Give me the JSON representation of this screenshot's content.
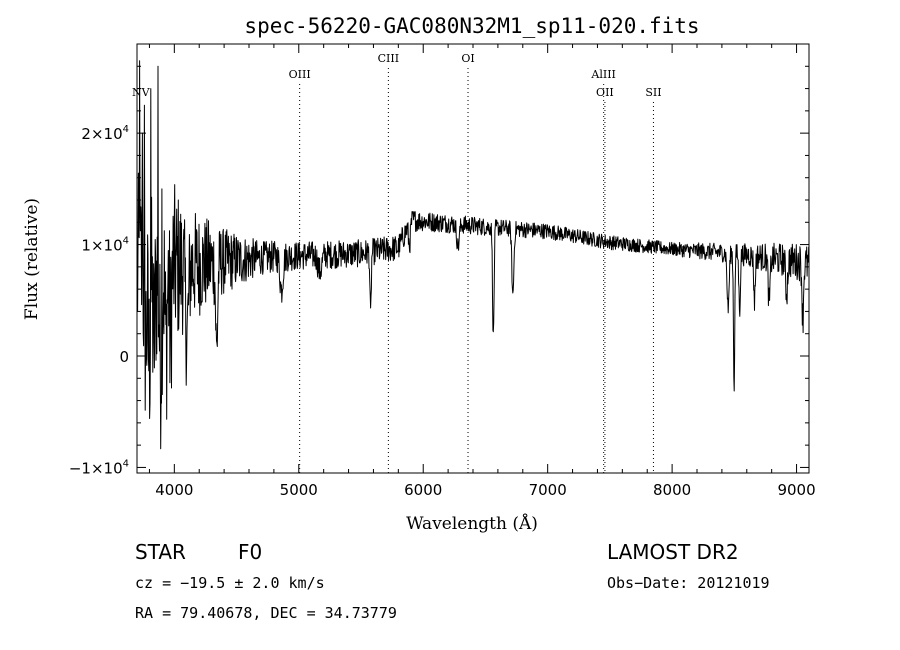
{
  "chart_data": {
    "type": "line",
    "title": "spec-56220-GAC080N32M1_sp11-020.fits",
    "xlabel": "Wavelength (Å)",
    "ylabel": "Flux (relative)",
    "xlim": [
      3700,
      9100
    ],
    "ylim": [
      -10500,
      28000
    ],
    "x_ticks": [
      {
        "value": 4000,
        "label": "4000"
      },
      {
        "value": 5000,
        "label": "5000"
      },
      {
        "value": 6000,
        "label": "6000"
      },
      {
        "value": 7000,
        "label": "7000"
      },
      {
        "value": 8000,
        "label": "8000"
      },
      {
        "value": 9000,
        "label": "9000"
      }
    ],
    "y_ticks": [
      {
        "value": -10000,
        "mant": "−1×10",
        "exp": "4"
      },
      {
        "value": 0,
        "mant": "0",
        "exp": ""
      },
      {
        "value": 10000,
        "mant": "1×10",
        "exp": "4"
      },
      {
        "value": 20000,
        "mant": "2×10",
        "exp": "4"
      }
    ],
    "lines": [
      {
        "label": "NV",
        "wavelength": 3730,
        "level": 2,
        "dotted": false
      },
      {
        "label": "OIII",
        "wavelength": 5007,
        "level": 1,
        "dotted": true
      },
      {
        "label": "CIII",
        "wavelength": 5720,
        "level": 0,
        "dotted": true
      },
      {
        "label": "OI",
        "wavelength": 6360,
        "level": 0,
        "dotted": true
      },
      {
        "label": "AlIII",
        "wavelength": 7450,
        "level": 1,
        "dotted": true
      },
      {
        "label": "OII",
        "wavelength": 7460,
        "level": 2,
        "dotted": true
      },
      {
        "label": "SII",
        "wavelength": 7850,
        "level": 2,
        "dotted": true
      }
    ],
    "continuum": [
      [
        3700,
        7500
      ],
      [
        3800,
        7600
      ],
      [
        4000,
        8000
      ],
      [
        4200,
        8200
      ],
      [
        4500,
        8600
      ],
      [
        4800,
        8900
      ],
      [
        5000,
        9000
      ],
      [
        5500,
        9200
      ],
      [
        5800,
        9700
      ],
      [
        5900,
        12200
      ],
      [
        6100,
        12000
      ],
      [
        6500,
        11600
      ],
      [
        7000,
        11200
      ],
      [
        7500,
        10200
      ],
      [
        8000,
        9600
      ],
      [
        8500,
        9200
      ],
      [
        9000,
        8500
      ],
      [
        9100,
        8200
      ]
    ],
    "absorption_features": [
      {
        "center": 3770,
        "depth": 6000,
        "width": 10
      },
      {
        "center": 3798,
        "depth": 8000,
        "width": 8
      },
      {
        "center": 3835,
        "depth": 6000,
        "width": 10
      },
      {
        "center": 3889,
        "depth": 8000,
        "width": 10
      },
      {
        "center": 3933,
        "depth": 7000,
        "width": 8
      },
      {
        "center": 3968,
        "depth": 6000,
        "width": 8
      },
      {
        "center": 4102,
        "depth": 6000,
        "width": 12
      },
      {
        "center": 4340,
        "depth": 8000,
        "width": 8
      },
      {
        "center": 4861,
        "depth": 3000,
        "width": 12
      },
      {
        "center": 5170,
        "depth": 1500,
        "width": 15
      },
      {
        "center": 5577,
        "depth": 6000,
        "width": 5
      },
      {
        "center": 5890,
        "depth": 2000,
        "width": 8
      },
      {
        "center": 6280,
        "depth": 2000,
        "width": 10
      },
      {
        "center": 6563,
        "depth": 10000,
        "width": 6
      },
      {
        "center": 6720,
        "depth": 6000,
        "width": 8
      },
      {
        "center": 8450,
        "depth": 5000,
        "width": 8
      },
      {
        "center": 8498,
        "depth": 12000,
        "width": 5
      },
      {
        "center": 8542,
        "depth": 5000,
        "width": 6
      },
      {
        "center": 8662,
        "depth": 4000,
        "width": 6
      },
      {
        "center": 8780,
        "depth": 4000,
        "width": 8
      },
      {
        "center": 8920,
        "depth": 3000,
        "width": 8
      },
      {
        "center": 9050,
        "depth": 5000,
        "width": 6
      }
    ],
    "noise": [
      [
        3700,
        9000
      ],
      [
        3950,
        8500
      ],
      [
        4100,
        5500
      ],
      [
        4400,
        3000
      ],
      [
        4700,
        1500
      ],
      [
        5000,
        1300
      ],
      [
        5800,
        1200
      ],
      [
        6000,
        900
      ],
      [
        7000,
        700
      ],
      [
        8000,
        600
      ],
      [
        8500,
        900
      ],
      [
        9100,
        1800
      ]
    ],
    "emission_spikes": [
      {
        "x": 3722,
        "y": 26500
      },
      {
        "x": 3745,
        "y": 20000
      },
      {
        "x": 3760,
        "y": 22500
      },
      {
        "x": 3810,
        "y": 24000
      },
      {
        "x": 3868,
        "y": 26000
      },
      {
        "x": 3900,
        "y": 15000
      }
    ]
  },
  "footer": {
    "object_type": "STAR",
    "subclass": "F0",
    "survey": "LAMOST DR2",
    "velocity": "cz = −19.5 ± 2.0 km/s",
    "obs_date": "Obs−Date: 20121019",
    "coords": "RA =  79.40678, DEC =  34.73779"
  }
}
